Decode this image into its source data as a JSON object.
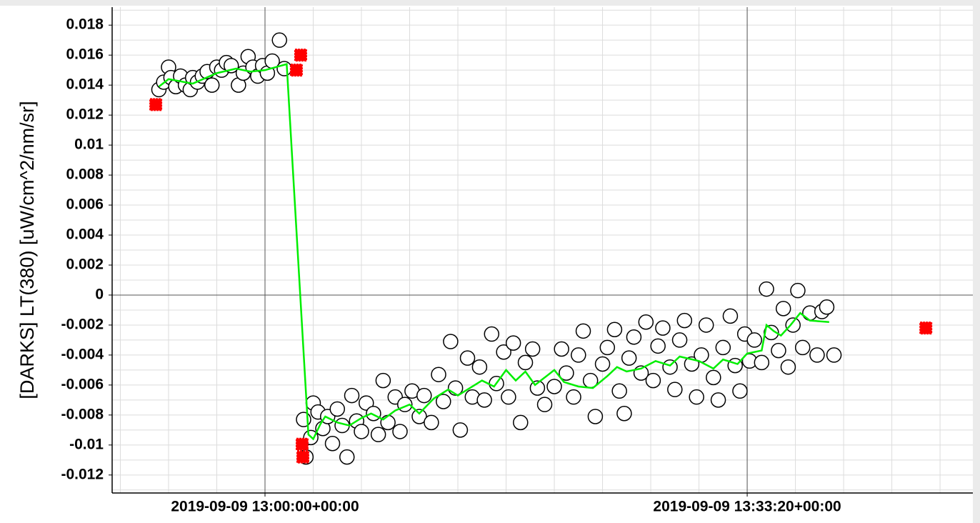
{
  "chart_data": {
    "type": "scatter",
    "ylabel": "[DARKS] LT(380) [uW/cm^2/nm/sr]",
    "xlim": [
      1568033366,
      1568036936
    ],
    "ylim": [
      -0.0132,
      0.0192
    ],
    "xticks": [
      {
        "value": 1568034000,
        "label": "2019-09-09 13:00:00+00:00"
      },
      {
        "value": 1568036000,
        "label": "2019-09-09 13:33:20+00:00"
      }
    ],
    "yticks": [
      -0.012,
      -0.01,
      -0.008,
      -0.006,
      -0.004,
      -0.002,
      0,
      0.002,
      0.004,
      0.006,
      0.008,
      0.01,
      0.012,
      0.014,
      0.016,
      0.018
    ],
    "grid": true,
    "x_minor_step": 200,
    "y_minor_step": 0.001,
    "series": [
      {
        "type": "scatter",
        "marker": "circle",
        "color": "#000000",
        "fill": "#ffffff",
        "x": [
          1568033560,
          1568033580,
          1568033600,
          1568033610,
          1568033630,
          1568033650,
          1568033670,
          1568033690,
          1568033700,
          1568033720,
          1568033740,
          1568033760,
          1568033780,
          1568033800,
          1568033820,
          1568033840,
          1568033860,
          1568033890,
          1568033910,
          1568033930,
          1568033950,
          1568033970,
          1568033990,
          1568034010,
          1568034030,
          1568034060,
          1568034080,
          1568034160,
          1568034170,
          1568034190,
          1568034200,
          1568034220,
          1568034240,
          1568034260,
          1568034280,
          1568034300,
          1568034320,
          1568034340,
          1568034360,
          1568034380,
          1568034400,
          1568034420,
          1568034450,
          1568034470,
          1568034490,
          1568034510,
          1568034540,
          1568034560,
          1568034580,
          1568034610,
          1568034640,
          1568034660,
          1568034690,
          1568034720,
          1568034740,
          1568034770,
          1568034790,
          1568034810,
          1568034840,
          1568034860,
          1568034890,
          1568034910,
          1568034940,
          1568034960,
          1568034990,
          1568035010,
          1568035030,
          1568035060,
          1568035080,
          1568035110,
          1568035130,
          1568035160,
          1568035200,
          1568035230,
          1568035250,
          1568035280,
          1568035300,
          1568035320,
          1568035350,
          1568035370,
          1568035400,
          1568035420,
          1568035450,
          1568035470,
          1568035490,
          1568035510,
          1568035530,
          1568035560,
          1568035580,
          1568035610,
          1568035630,
          1568035650,
          1568035680,
          1568035700,
          1568035720,
          1568035740,
          1568035770,
          1568035790,
          1568035810,
          1568035830,
          1568035860,
          1568035880,
          1568035900,
          1568035930,
          1568035950,
          1568035970,
          1568035990,
          1568036010,
          1568036030,
          1568036060,
          1568036080,
          1568036100,
          1568036130,
          1568036150,
          1568036170,
          1568036190,
          1568036210,
          1568036230,
          1568036260,
          1568036290,
          1568036310,
          1568036330,
          1568036360
        ],
        "values": [
          0.0137,
          0.0142,
          0.0152,
          0.0145,
          0.0139,
          0.0146,
          0.014,
          0.0137,
          0.0145,
          0.0142,
          0.0146,
          0.0149,
          0.014,
          0.0152,
          0.015,
          0.0155,
          0.0153,
          0.014,
          0.0148,
          0.0159,
          0.0152,
          0.0146,
          0.0153,
          0.0148,
          0.0156,
          0.017,
          0.0151,
          -0.0083,
          -0.0108,
          -0.0095,
          -0.0072,
          -0.0078,
          -0.0089,
          -0.0081,
          -0.0099,
          -0.0076,
          -0.0087,
          -0.0108,
          -0.0067,
          -0.0084,
          -0.0091,
          -0.0072,
          -0.0079,
          -0.0093,
          -0.0057,
          -0.0085,
          -0.0068,
          -0.0091,
          -0.0073,
          -0.0064,
          -0.0081,
          -0.0067,
          -0.0085,
          -0.0053,
          -0.0071,
          -0.0031,
          -0.0062,
          -0.009,
          -0.0042,
          -0.0068,
          -0.0048,
          -0.007,
          -0.0026,
          -0.0059,
          -0.0038,
          -0.0068,
          -0.0032,
          -0.0085,
          -0.0045,
          -0.0036,
          -0.0062,
          -0.0073,
          -0.0061,
          -0.0036,
          -0.0052,
          -0.0068,
          -0.004,
          -0.0024,
          -0.0057,
          -0.0081,
          -0.0046,
          -0.0035,
          -0.0023,
          -0.0064,
          -0.0079,
          -0.0042,
          -0.0028,
          -0.0052,
          -0.0018,
          -0.0057,
          -0.0034,
          -0.0022,
          -0.0048,
          -0.0063,
          -0.003,
          -0.0017,
          -0.0046,
          -0.0068,
          -0.004,
          -0.002,
          -0.0055,
          -0.007,
          -0.0035,
          -0.0014,
          -0.0047,
          -0.0064,
          -0.0026,
          -0.0044,
          -0.003,
          -0.0045,
          0.0004,
          -0.0025,
          -0.0037,
          -0.0009,
          -0.0048,
          -0.002,
          0.0003,
          -0.0035,
          -0.0012,
          -0.004,
          -0.0011,
          -0.0008,
          -0.004
        ]
      },
      {
        "type": "scatter",
        "marker": "square",
        "color": "#ff0000",
        "x": [
          1568033547,
          1568034130,
          1568034148,
          1568034154,
          1568034157,
          1568036741
        ],
        "values": [
          0.0127,
          0.015,
          0.016,
          -0.00995,
          -0.0108,
          -0.0022
        ]
      },
      {
        "type": "line",
        "color": "#00ee00",
        "x": [
          1568033560,
          1568033600,
          1568033700,
          1568033800,
          1568033880,
          1568033940,
          1568034000,
          1568034090,
          1568034180,
          1568034200,
          1568034230,
          1568034250,
          1568034300,
          1568034350,
          1568034400,
          1568034440,
          1568034490,
          1568034540,
          1568034600,
          1568034640,
          1568034700,
          1568034760,
          1568034800,
          1568034850,
          1568034900,
          1568034950,
          1568035000,
          1568035040,
          1568035080,
          1568035120,
          1568035160,
          1568035200,
          1568035240,
          1568035300,
          1568035360,
          1568035420,
          1568035460,
          1568035500,
          1568035560,
          1568035620,
          1568035680,
          1568035720,
          1568035800,
          1568035860,
          1568035900,
          1568035960,
          1568036000,
          1568036060,
          1568036080,
          1568036110,
          1568036140,
          1568036180,
          1568036220,
          1568036260,
          1568036340
        ],
        "values": [
          0.0139,
          0.0144,
          0.0141,
          0.0148,
          0.0151,
          0.0149,
          0.015,
          0.0154,
          -0.0093,
          -0.0096,
          -0.0086,
          -0.0081,
          -0.0085,
          -0.0087,
          -0.0082,
          -0.0079,
          -0.0083,
          -0.0077,
          -0.0073,
          -0.0079,
          -0.0069,
          -0.0063,
          -0.0067,
          -0.0062,
          -0.0057,
          -0.0061,
          -0.005,
          -0.0057,
          -0.0051,
          -0.006,
          -0.0055,
          -0.005,
          -0.0058,
          -0.0061,
          -0.0062,
          -0.0054,
          -0.0048,
          -0.0051,
          -0.0049,
          -0.0044,
          -0.0047,
          -0.0041,
          -0.0044,
          -0.0049,
          -0.0043,
          -0.0046,
          -0.0039,
          -0.0037,
          -0.002,
          -0.0024,
          -0.0027,
          -0.002,
          -0.0012,
          -0.0017,
          -0.0018
        ]
      }
    ]
  }
}
